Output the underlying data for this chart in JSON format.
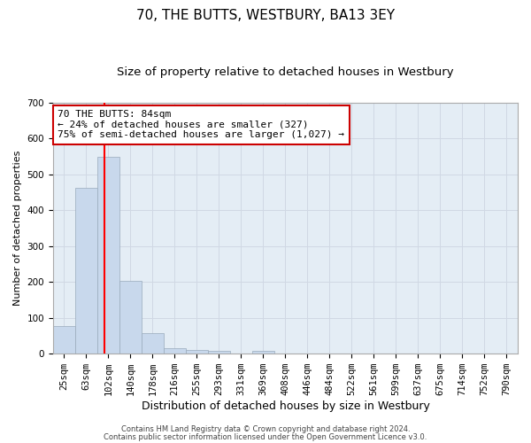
{
  "title": "70, THE BUTTS, WESTBURY, BA13 3EY",
  "subtitle": "Size of property relative to detached houses in Westbury",
  "xlabel": "Distribution of detached houses by size in Westbury",
  "ylabel": "Number of detached properties",
  "footer_line1": "Contains HM Land Registry data © Crown copyright and database right 2024.",
  "footer_line2": "Contains public sector information licensed under the Open Government Licence v3.0.",
  "bar_labels": [
    "25sqm",
    "63sqm",
    "102sqm",
    "140sqm",
    "178sqm",
    "216sqm",
    "255sqm",
    "293sqm",
    "331sqm",
    "369sqm",
    "408sqm",
    "446sqm",
    "484sqm",
    "522sqm",
    "561sqm",
    "599sqm",
    "637sqm",
    "675sqm",
    "714sqm",
    "752sqm",
    "790sqm"
  ],
  "bar_values": [
    78,
    462,
    548,
    203,
    57,
    15,
    10,
    9,
    0,
    8,
    0,
    0,
    0,
    0,
    0,
    0,
    0,
    0,
    0,
    0,
    0
  ],
  "bar_color": "#c8d8ec",
  "bar_edge_color": "#99aabb",
  "red_line_x": 1.82,
  "annotation_line1": "70 THE BUTTS: 84sqm",
  "annotation_line2": "← 24% of detached houses are smaller (327)",
  "annotation_line3": "75% of semi-detached houses are larger (1,027) →",
  "annotation_box_color": "#ffffff",
  "annotation_box_edge": "#cc0000",
  "ylim": [
    0,
    700
  ],
  "yticks": [
    0,
    100,
    200,
    300,
    400,
    500,
    600,
    700
  ],
  "grid_color": "#d0d8e4",
  "background_color": "#e4edf5",
  "title_fontsize": 11,
  "subtitle_fontsize": 9.5,
  "xlabel_fontsize": 9,
  "ylabel_fontsize": 8,
  "tick_fontsize": 7.5,
  "annotation_fontsize": 8,
  "footer_fontsize": 6
}
